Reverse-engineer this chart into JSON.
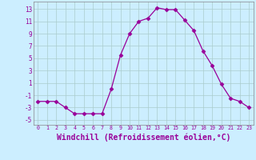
{
  "x": [
    0,
    1,
    2,
    3,
    4,
    5,
    6,
    7,
    8,
    9,
    10,
    11,
    12,
    13,
    14,
    15,
    16,
    17,
    18,
    19,
    20,
    21,
    22,
    23
  ],
  "y": [
    -2,
    -2,
    -2,
    -3,
    -4,
    -4,
    -4,
    -4,
    0,
    5.5,
    9,
    11,
    11.5,
    13.2,
    12.9,
    12.9,
    11.2,
    9.5,
    6.2,
    3.8,
    0.8,
    -1.5,
    -2,
    -3
  ],
  "line_color": "#990099",
  "marker": "D",
  "markersize": 2.5,
  "bg_color": "#cceeff",
  "grid_color": "#aacccc",
  "xlabel": "Windchill (Refroidissement éolien,°C)",
  "xlabel_fontsize": 7,
  "ylabel_ticks": [
    -5,
    -3,
    -1,
    1,
    3,
    5,
    7,
    9,
    11,
    13
  ],
  "xlim": [
    -0.5,
    23.5
  ],
  "ylim": [
    -5.8,
    14.2
  ],
  "xtick_labels": [
    "0",
    "1",
    "2",
    "3",
    "4",
    "5",
    "6",
    "7",
    "8",
    "9",
    "10",
    "11",
    "12",
    "13",
    "14",
    "15",
    "16",
    "17",
    "18",
    "19",
    "20",
    "21",
    "22",
    "23"
  ]
}
